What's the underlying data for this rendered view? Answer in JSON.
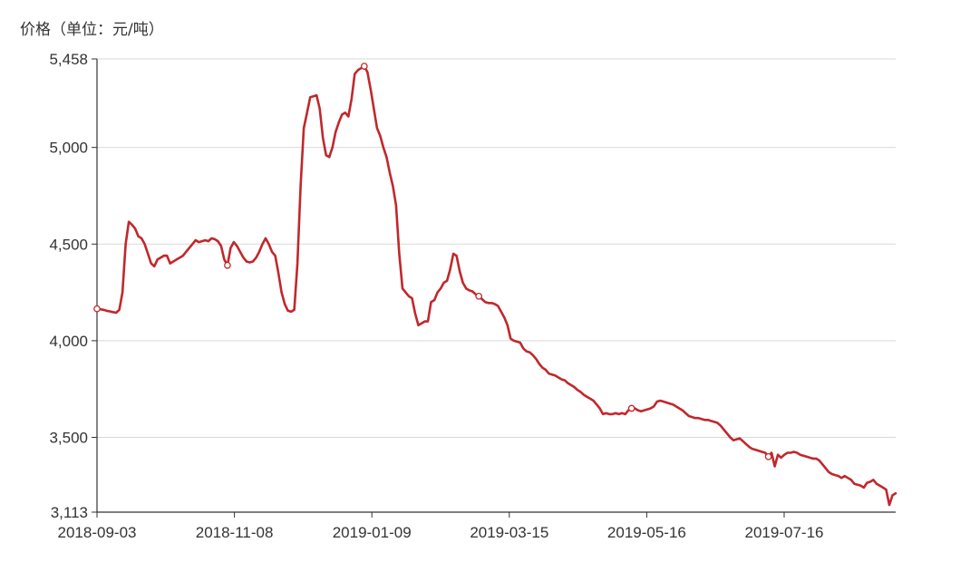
{
  "chart_data": {
    "type": "line",
    "ylabel": "价格（单位：元/吨）",
    "ylim": [
      3113,
      5458
    ],
    "y_ticks": [
      3113,
      3500,
      4000,
      4500,
      5000,
      5458
    ],
    "y_tick_labels": [
      "3,113",
      "3,500",
      "4,000",
      "4,500",
      "5,000",
      "5,458"
    ],
    "x_tick_labels": [
      "2018-09-03",
      "2018-11-08",
      "2019-01-09",
      "2019-03-15",
      "2019-05-16",
      "2019-07-16"
    ],
    "grid": true,
    "colors": {
      "line": "#c0282c",
      "grid": "#d9d9d9",
      "axis": "#333333"
    },
    "series": [
      {
        "values": [
          4165,
          4163,
          4160,
          4155,
          4152,
          4148,
          4145,
          4160,
          4250,
          4500,
          4615,
          4600,
          4580,
          4540,
          4530,
          4500,
          4450,
          4400,
          4385,
          4420,
          4430,
          4440,
          4440,
          4400,
          4410,
          4420,
          4430,
          4440,
          4460,
          4480,
          4500,
          4520,
          4510,
          4515,
          4520,
          4515,
          4530,
          4525,
          4515,
          4490,
          4420,
          4390,
          4480,
          4510,
          4490,
          4460,
          4430,
          4410,
          4405,
          4410,
          4430,
          4460,
          4500,
          4530,
          4500,
          4460,
          4440,
          4350,
          4250,
          4190,
          4155,
          4150,
          4160,
          4400,
          4800,
          5100,
          5180,
          5260,
          5265,
          5270,
          5200,
          5050,
          4960,
          4950,
          5000,
          5080,
          5130,
          5170,
          5180,
          5160,
          5250,
          5380,
          5400,
          5410,
          5420,
          5390,
          5300,
          5200,
          5100,
          5060,
          5000,
          4950,
          4870,
          4800,
          4700,
          4450,
          4270,
          4250,
          4230,
          4220,
          4140,
          4080,
          4090,
          4100,
          4100,
          4200,
          4210,
          4250,
          4270,
          4300,
          4310,
          4370,
          4450,
          4440,
          4360,
          4300,
          4270,
          4260,
          4255,
          4240,
          4230,
          4215,
          4200,
          4195,
          4195,
          4190,
          4180,
          4150,
          4120,
          4080,
          4010,
          4000,
          3995,
          3990,
          3960,
          3945,
          3940,
          3925,
          3905,
          3880,
          3860,
          3850,
          3830,
          3825,
          3820,
          3810,
          3800,
          3795,
          3780,
          3770,
          3760,
          3745,
          3735,
          3720,
          3710,
          3700,
          3690,
          3670,
          3650,
          3620,
          3625,
          3620,
          3620,
          3625,
          3620,
          3625,
          3620,
          3640,
          3650,
          3650,
          3640,
          3635,
          3640,
          3645,
          3650,
          3660,
          3685,
          3690,
          3685,
          3680,
          3675,
          3670,
          3660,
          3650,
          3640,
          3625,
          3610,
          3605,
          3600,
          3600,
          3595,
          3590,
          3590,
          3585,
          3580,
          3575,
          3560,
          3540,
          3520,
          3500,
          3485,
          3490,
          3495,
          3480,
          3465,
          3450,
          3440,
          3435,
          3430,
          3425,
          3420,
          3400,
          3420,
          3350,
          3410,
          3395,
          3410,
          3420,
          3420,
          3425,
          3420,
          3410,
          3405,
          3400,
          3395,
          3390,
          3390,
          3380,
          3360,
          3340,
          3320,
          3310,
          3305,
          3300,
          3290,
          3300,
          3290,
          3280,
          3260,
          3255,
          3250,
          3240,
          3265,
          3270,
          3280,
          3260,
          3250,
          3240,
          3230,
          3150,
          3200,
          3210
        ]
      }
    ],
    "marker_indices": [
      0,
      41,
      84,
      120,
      168,
      211
    ]
  }
}
